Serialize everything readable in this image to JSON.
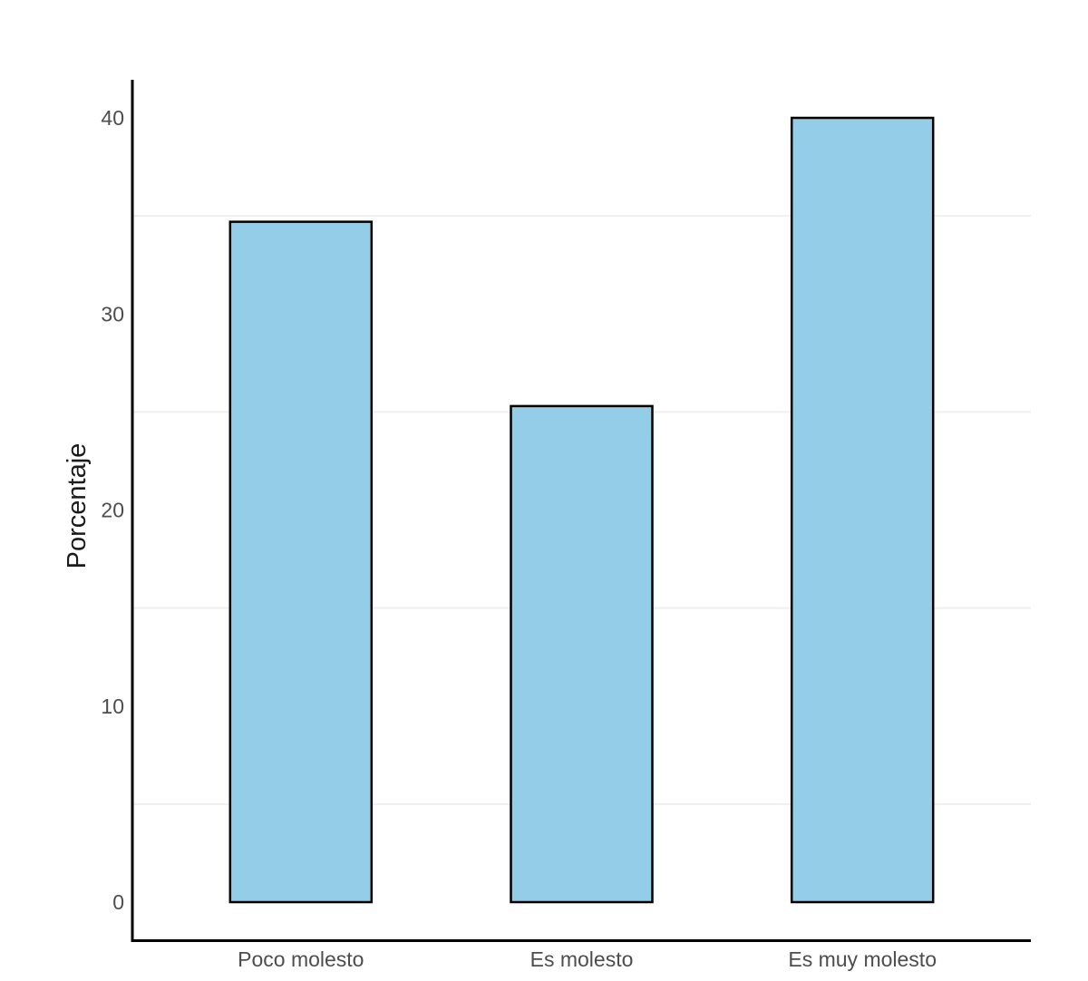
{
  "chart_data": {
    "type": "bar",
    "title": "",
    "xlabel": "",
    "ylabel": "Porcentaje",
    "categories": [
      "Poco molesto",
      "Es molesto",
      "Es muy molesto"
    ],
    "values": [
      34.7,
      25.3,
      40.0
    ],
    "yticks": [
      0,
      10,
      20,
      30,
      40
    ],
    "minor_gridlines": [
      5,
      15,
      25,
      35
    ],
    "ylim": [
      0,
      42
    ],
    "grid": "horizontal-minor-only",
    "legend": "none",
    "colors": {
      "background": "#FFFFFF",
      "bar_fill": "#93CDE8",
      "bar_stroke": "#000000",
      "axis_line": "#000000",
      "gridline": "#EFEFEF",
      "tick_label": "#4D4D4D",
      "axis_title": "#1B1B1B"
    }
  }
}
